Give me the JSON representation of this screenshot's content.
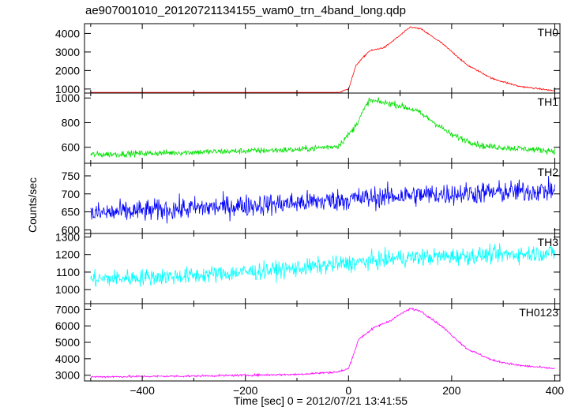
{
  "chart_data": {
    "type": "line",
    "title": "ae907001010_20120721134155_wam0_trn_4band_long.qdp",
    "xlabel": "Time [sec] 0 = 2012/07/21 13:41:55",
    "ylabel": "Counts/sec",
    "xlim": [
      -512,
      410
    ],
    "xticks": [
      -400,
      -200,
      0,
      200,
      400
    ],
    "xtick_labels": [
      "−400",
      "−200",
      "0",
      "200",
      "400"
    ],
    "grid": false,
    "panels": [
      {
        "name": "TH0",
        "color": "#ff0000",
        "ylim": [
          780,
          4530
        ],
        "yticks": [
          1000,
          2000,
          3000,
          4000
        ],
        "ytick_labels": [
          "1000",
          "2000",
          "3000",
          "4000"
        ],
        "noise": 30,
        "curve": [
          [
            -500,
            590
          ],
          [
            -300,
            640
          ],
          [
            -100,
            680
          ],
          [
            -20,
            800
          ],
          [
            0,
            1000
          ],
          [
            15,
            2300
          ],
          [
            40,
            3050
          ],
          [
            70,
            3250
          ],
          [
            100,
            3900
          ],
          [
            120,
            4350
          ],
          [
            140,
            4250
          ],
          [
            180,
            3500
          ],
          [
            230,
            2300
          ],
          [
            280,
            1550
          ],
          [
            330,
            1150
          ],
          [
            400,
            900
          ]
        ]
      },
      {
        "name": "TH1",
        "color": "#00e000",
        "ylim": [
          470,
          1040
        ],
        "yticks": [
          600,
          800,
          1000
        ],
        "ytick_labels": [
          "600",
          "800",
          "1000"
        ],
        "noise": 18,
        "curve": [
          [
            -500,
            540
          ],
          [
            -300,
            560
          ],
          [
            -100,
            580
          ],
          [
            -20,
            610
          ],
          [
            10,
            750
          ],
          [
            40,
            980
          ],
          [
            90,
            950
          ],
          [
            130,
            900
          ],
          [
            160,
            820
          ],
          [
            200,
            700
          ],
          [
            260,
            610
          ],
          [
            400,
            570
          ]
        ]
      },
      {
        "name": "TH2",
        "color": "#0000ff",
        "ylim": [
          590,
          785
        ],
        "yticks": [
          600,
          650,
          700,
          750
        ],
        "ytick_labels": [
          "600",
          "650",
          "700",
          "750"
        ],
        "noise": 22,
        "curve": [
          [
            -500,
            645
          ],
          [
            -300,
            660
          ],
          [
            -100,
            675
          ],
          [
            100,
            695
          ],
          [
            400,
            710
          ]
        ]
      },
      {
        "name": "TH3",
        "color": "#00ffff",
        "ylim": [
          920,
          1320
        ],
        "yticks": [
          1000,
          1100,
          1200,
          1300
        ],
        "ytick_labels": [
          "1000",
          "1100",
          "1200",
          "1300"
        ],
        "noise": 35,
        "curve": [
          [
            -500,
            1060
          ],
          [
            -300,
            1080
          ],
          [
            -100,
            1120
          ],
          [
            100,
            1180
          ],
          [
            400,
            1210
          ]
        ]
      },
      {
        "name": "TH0123",
        "color": "#ff00ff",
        "ylim": [
          2650,
          7350
        ],
        "yticks": [
          3000,
          4000,
          5000,
          6000,
          7000
        ],
        "ytick_labels": [
          "3000",
          "4000",
          "5000",
          "6000",
          "7000"
        ],
        "noise": 45,
        "curve": [
          [
            -500,
            2900
          ],
          [
            -300,
            2950
          ],
          [
            -100,
            3050
          ],
          [
            -20,
            3200
          ],
          [
            0,
            3400
          ],
          [
            20,
            5200
          ],
          [
            50,
            5900
          ],
          [
            80,
            6300
          ],
          [
            100,
            6700
          ],
          [
            120,
            7050
          ],
          [
            140,
            6900
          ],
          [
            180,
            6000
          ],
          [
            230,
            4600
          ],
          [
            280,
            3900
          ],
          [
            330,
            3600
          ],
          [
            400,
            3400
          ]
        ]
      }
    ]
  }
}
